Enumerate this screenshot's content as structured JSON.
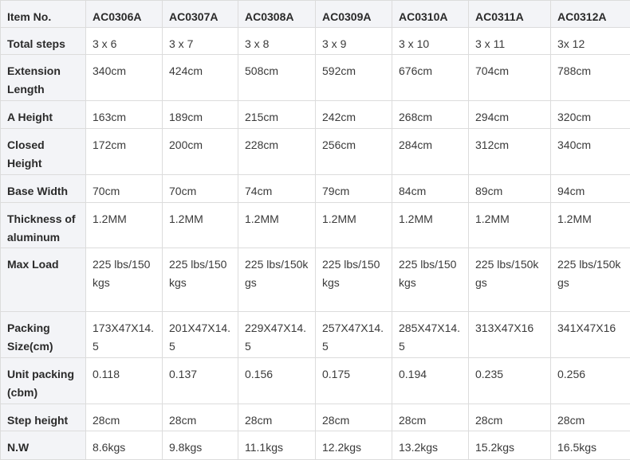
{
  "header": {
    "label": "Item No.",
    "items": [
      "AC0306A",
      "AC0307A",
      "AC0308A",
      "AC0309A",
      "AC0310A",
      "AC0311A",
      "AC0312A"
    ]
  },
  "rows": [
    {
      "label": "Total steps",
      "values": [
        "3 x 6",
        "3 x 7",
        "3 x 8",
        "3 x 9",
        "3 x 10",
        "3 x 11",
        "3x 12"
      ]
    },
    {
      "label": "Extension Length",
      "values": [
        "340cm",
        "424cm",
        "508cm",
        "592cm",
        "676cm",
        "704cm",
        "788cm"
      ]
    },
    {
      "label": "A Height",
      "values": [
        "163cm",
        "189cm",
        "215cm",
        "242cm",
        "268cm",
        "294cm",
        "320cm"
      ]
    },
    {
      "label": "Closed Height",
      "values": [
        "172cm",
        "200cm",
        "228cm",
        "256cm",
        "284cm",
        "312cm",
        "340cm"
      ]
    },
    {
      "label": "Base Width",
      "values": [
        "70cm",
        "70cm",
        "74cm",
        "79cm",
        "84cm",
        "89cm",
        "94cm"
      ]
    },
    {
      "label": "Thickness of aluminum",
      "values": [
        "1.2MM",
        "1.2MM",
        "1.2MM",
        "1.2MM",
        "1.2MM",
        "1.2MM",
        "1.2MM"
      ]
    },
    {
      "label": "Max Load",
      "values": [
        "225 lbs/150kgs",
        "225 lbs/150kgs",
        "225 lbs/150kgs",
        "225 lbs/150kgs",
        "225 lbs/150kgs",
        "225 lbs/150kgs",
        "225 lbs/150kgs"
      ]
    },
    {
      "label": "Packing Size(cm)",
      "values": [
        "173X47X14.5",
        "201X47X14.5",
        "229X47X14.5",
        "257X47X14.5",
        "285X47X14.5",
        "313X47X16",
        "341X47X16"
      ]
    },
    {
      "label": "Unit packing (cbm)",
      "values": [
        "0.118",
        "0.137",
        "0.156",
        "0.175",
        "0.194",
        "0.235",
        "0.256"
      ]
    },
    {
      "label": "Step height",
      "values": [
        "28cm",
        "28cm",
        "28cm",
        "28cm",
        "28cm",
        "28cm",
        "28cm"
      ]
    },
    {
      "label": "N.W",
      "values": [
        "8.6kgs",
        "9.8kgs",
        "11.1kgs",
        "12.2kgs",
        "13.2kgs",
        "15.2kgs",
        "16.5kgs"
      ]
    }
  ]
}
